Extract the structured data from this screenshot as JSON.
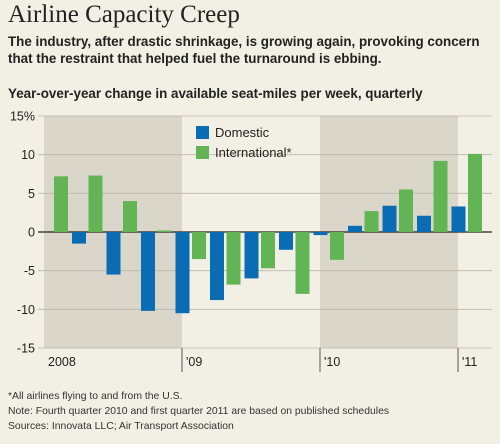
{
  "title": "Airline Capacity Creep",
  "subtitle": "The industry, after drastic shrinkage, is growing again, provoking concern that the restraint that helped fuel the turnaround is ebbing.",
  "chart_data": {
    "type": "bar",
    "ylabel": "Year-over-year change in available seat-miles per week, quarterly",
    "y_tick_labels": [
      "15%",
      "10",
      "5",
      "0",
      "-5",
      "-10",
      "-15"
    ],
    "y_ticks": [
      15,
      10,
      5,
      0,
      -5,
      -10,
      -15
    ],
    "ylim": [
      -15,
      15
    ],
    "year_labels": [
      "2008",
      "'09",
      "'10",
      "'11"
    ],
    "categories": [
      "2008 Q1",
      "2008 Q2",
      "2008 Q3",
      "2008 Q4",
      "2009 Q1",
      "2009 Q2",
      "2009 Q3",
      "2009 Q4",
      "2010 Q1",
      "2010 Q2",
      "2010 Q3",
      "2010 Q4",
      "2011 Q1"
    ],
    "series": [
      {
        "name": "Domestic",
        "color": "#0a6cb3",
        "values": [
          -1.5,
          -5.5,
          -10.2,
          -10.5,
          -8.8,
          -6.0,
          -2.3,
          -0.4,
          0.8,
          3.4,
          2.1,
          3.3,
          null
        ]
      },
      {
        "name": "International*",
        "color": "#62b455",
        "values": [
          7.2,
          7.3,
          4.0,
          0.2,
          -3.5,
          -6.8,
          -4.7,
          -8.0,
          -3.6,
          2.7,
          5.5,
          9.2,
          10.1
        ]
      }
    ],
    "grid": true,
    "legend_position": "top-center",
    "shaded_years": [
      "2008",
      "2010"
    ]
  },
  "notes": [
    "*All airlines flying to and from the U.S.",
    "Note: Fourth quarter 2010 and first quarter 2011 are based on published schedules",
    "Sources: Innovata LLC; Air Transport Association"
  ]
}
